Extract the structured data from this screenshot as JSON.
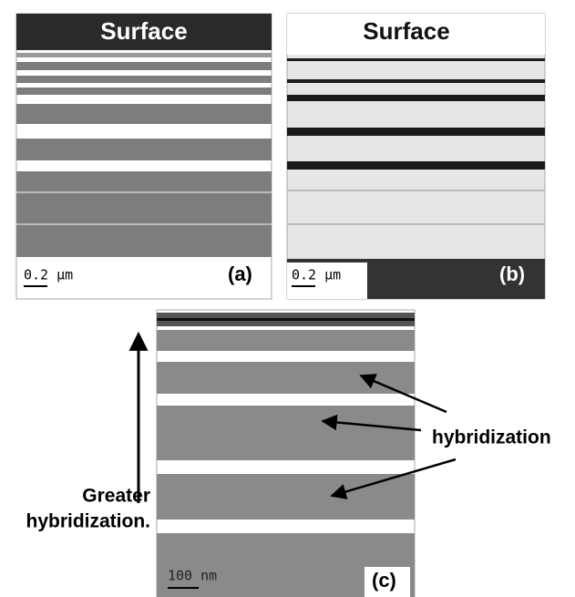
{
  "panels": [
    {
      "header": "Surface",
      "scale": "0.2 μm",
      "label": "(a)"
    },
    {
      "header": "Surface",
      "scale": "0.2 μm",
      "label": "(b)"
    },
    {
      "scale": "100 nm",
      "label": "(c)"
    }
  ],
  "annotations": {
    "hybridization": "hybridization",
    "greater": [
      "Greater",
      "hybridization."
    ]
  }
}
